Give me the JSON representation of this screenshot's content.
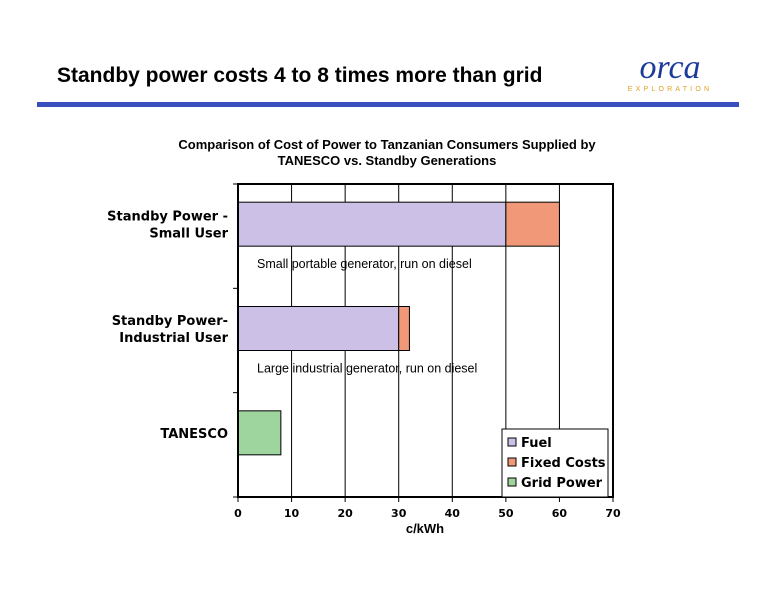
{
  "slide": {
    "title": "Standby power costs 4 to 8 times more than grid",
    "logo_text": "orca",
    "logo_subtext": "EXPLORATION",
    "rule_color": "#3a4fbf"
  },
  "chart_data": {
    "type": "bar",
    "orientation": "horizontal",
    "stacked": true,
    "title_lines": [
      "Comparison of Cost of Power to Tanzanian Consumers Supplied by",
      "TANESCO vs. Standby Generations"
    ],
    "categories": [
      [
        "Standby Power -",
        "Small User"
      ],
      [
        "Standby Power-",
        "Industrial User"
      ],
      [
        "TANESCO"
      ]
    ],
    "series": [
      {
        "name": "Fuel",
        "color": "#ccc0e6",
        "values": [
          50,
          30,
          0
        ]
      },
      {
        "name": "Fixed Costs",
        "color": "#f09878",
        "values": [
          10,
          2,
          0
        ]
      },
      {
        "name": "Grid Power",
        "color": "#9ed49e",
        "values": [
          0,
          0,
          8
        ]
      }
    ],
    "annotations": [
      {
        "text": "Small portable generator, run on diesel",
        "category_index": 0
      },
      {
        "text": "Large industrial generator, run on diesel",
        "category_index": 1
      }
    ],
    "xlabel": "c/kWh",
    "xlim": [
      0,
      70
    ],
    "xticks": [
      0,
      10,
      20,
      30,
      40,
      50,
      60,
      70
    ],
    "grid": true,
    "legend_position": "bottom-right"
  }
}
